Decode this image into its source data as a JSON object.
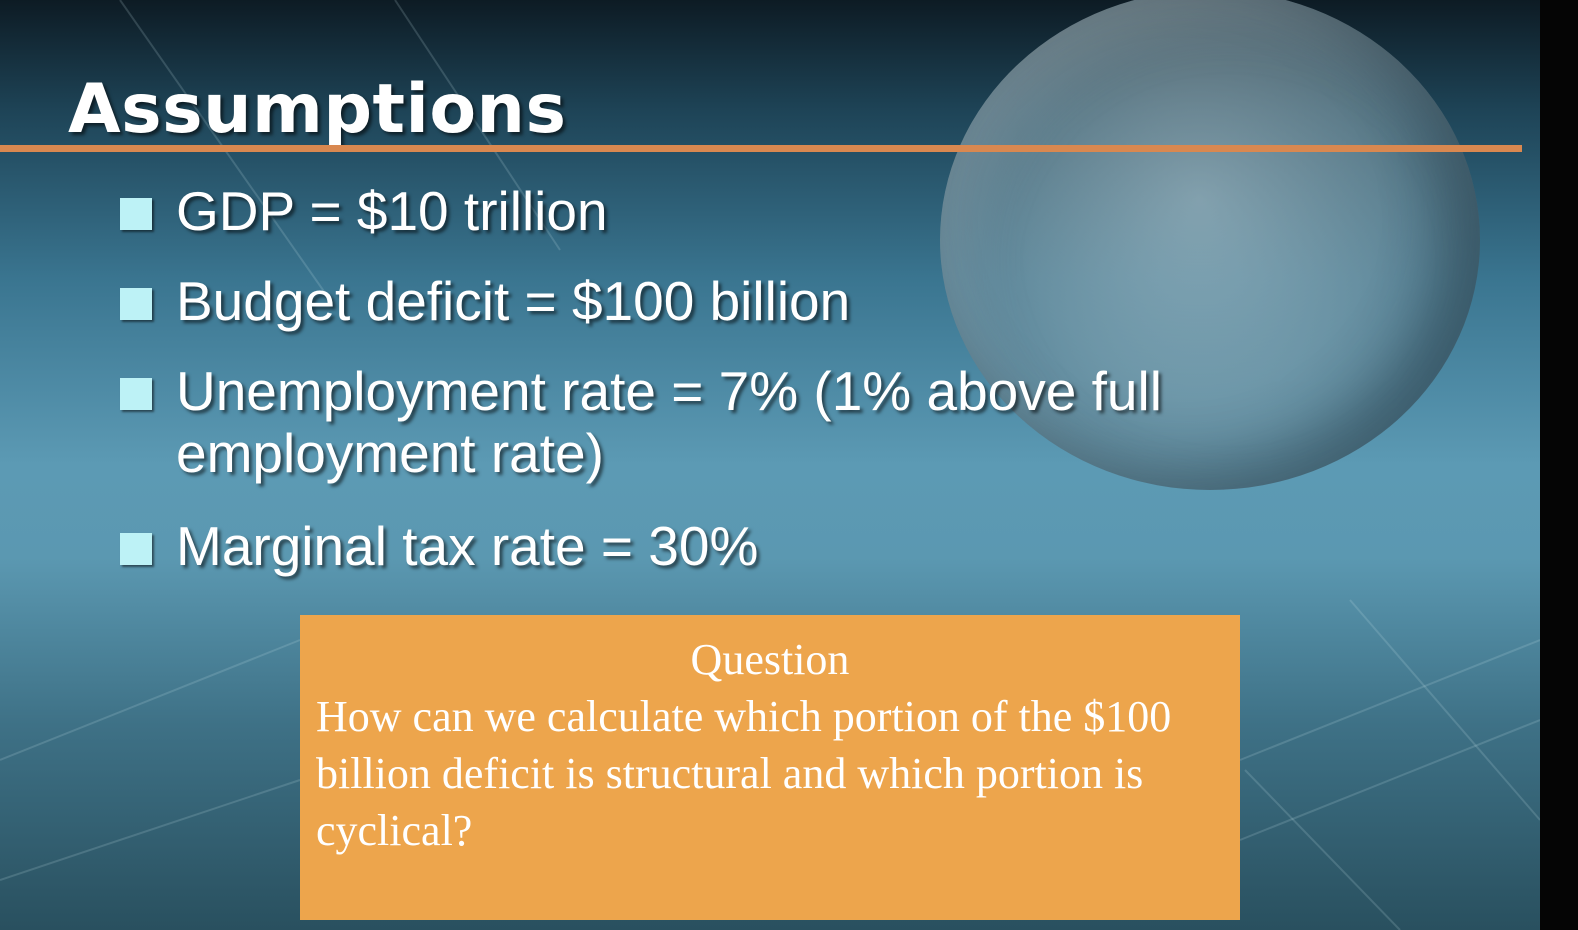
{
  "slide": {
    "title": "Assumptions",
    "bullets": [
      "GDP = $10 trillion",
      "Budget deficit = $100 billion",
      "Unemployment rate = 7% (1% above full employment rate)",
      "Marginal tax rate = 30%"
    ],
    "question": {
      "heading": "Question",
      "text": "How can we calculate which portion of the $100 billion deficit is structural and which portion is cyclical?"
    }
  },
  "colors": {
    "title_rule": "#d98850",
    "bullet_marker": "#bdf2f6",
    "question_box": "#eda54c",
    "text": "#ffffff"
  },
  "icons": {
    "background": "globe-icon",
    "bullet": "square-bullet-icon"
  }
}
